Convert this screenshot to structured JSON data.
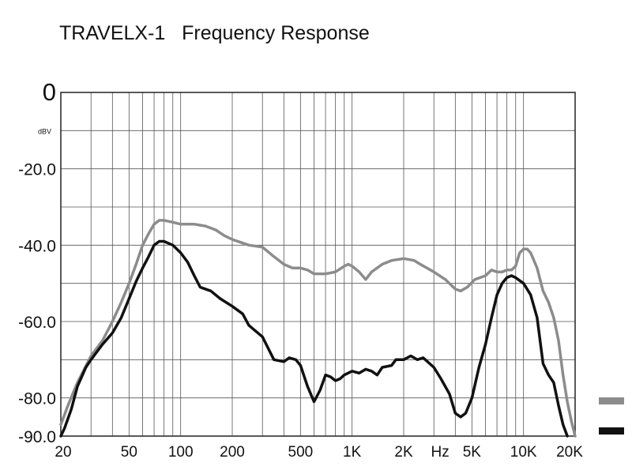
{
  "title": "TRAVELX-1   Frequency Response",
  "chart_data": {
    "type": "line",
    "title": "TRAVELX-1   Frequency Response",
    "xscale": "log",
    "xlim": [
      20,
      20000
    ],
    "ylim": [
      -90,
      0
    ],
    "grid": true,
    "y_unit_label": "dBV",
    "x_unit_label": "Hz",
    "y_ticks": [
      {
        "value": 0,
        "label": "0"
      },
      {
        "value": -20,
        "label": "-20.0"
      },
      {
        "value": -40,
        "label": "-40.0"
      },
      {
        "value": -60,
        "label": "-60.0"
      },
      {
        "value": -80,
        "label": "-80.0"
      },
      {
        "value": -90,
        "label": "-90.0"
      }
    ],
    "x_ticks": [
      {
        "value": 20,
        "label": "20"
      },
      {
        "value": 50,
        "label": "50"
      },
      {
        "value": 100,
        "label": "100"
      },
      {
        "value": 200,
        "label": "200"
      },
      {
        "value": 500,
        "label": "500"
      },
      {
        "value": 1000,
        "label": "1K"
      },
      {
        "value": 2000,
        "label": "2K"
      },
      {
        "value": 5000,
        "label": "5K"
      },
      {
        "value": 10000,
        "label": "10K"
      },
      {
        "value": 20000,
        "label": "20K"
      }
    ],
    "series": [
      {
        "color": "#8c8c8c",
        "points": [
          [
            20,
            -87
          ],
          [
            22,
            -82
          ],
          [
            25,
            -76
          ],
          [
            30,
            -69
          ],
          [
            35,
            -65
          ],
          [
            40,
            -60
          ],
          [
            45,
            -55
          ],
          [
            50,
            -50
          ],
          [
            55,
            -45
          ],
          [
            60,
            -40
          ],
          [
            65,
            -37
          ],
          [
            70,
            -34.5
          ],
          [
            75,
            -33.5
          ],
          [
            80,
            -33.5
          ],
          [
            90,
            -34
          ],
          [
            100,
            -34.5
          ],
          [
            120,
            -34.5
          ],
          [
            140,
            -35
          ],
          [
            160,
            -36
          ],
          [
            180,
            -37.5
          ],
          [
            200,
            -38.5
          ],
          [
            250,
            -40
          ],
          [
            300,
            -40.5
          ],
          [
            350,
            -43
          ],
          [
            400,
            -45
          ],
          [
            450,
            -46
          ],
          [
            500,
            -46
          ],
          [
            550,
            -46.5
          ],
          [
            600,
            -47.5
          ],
          [
            700,
            -47.5
          ],
          [
            800,
            -47
          ],
          [
            900,
            -45.5
          ],
          [
            950,
            -45
          ],
          [
            1000,
            -45.5
          ],
          [
            1100,
            -47
          ],
          [
            1200,
            -49
          ],
          [
            1300,
            -47
          ],
          [
            1500,
            -45
          ],
          [
            1700,
            -44
          ],
          [
            2000,
            -43.5
          ],
          [
            2300,
            -44
          ],
          [
            2500,
            -45
          ],
          [
            3000,
            -47
          ],
          [
            3500,
            -49
          ],
          [
            4000,
            -51.5
          ],
          [
            4300,
            -52
          ],
          [
            4700,
            -51
          ],
          [
            5200,
            -49
          ],
          [
            6000,
            -48
          ],
          [
            6500,
            -46.5
          ],
          [
            7000,
            -47
          ],
          [
            7500,
            -47
          ],
          [
            8000,
            -46.5
          ],
          [
            8500,
            -46.5
          ],
          [
            9000,
            -45.5
          ],
          [
            9500,
            -42
          ],
          [
            10000,
            -41
          ],
          [
            10500,
            -41
          ],
          [
            11000,
            -42
          ],
          [
            12000,
            -46
          ],
          [
            13000,
            -52
          ],
          [
            14000,
            -55
          ],
          [
            15000,
            -59
          ],
          [
            16000,
            -65
          ],
          [
            17000,
            -74
          ],
          [
            18000,
            -81
          ],
          [
            19000,
            -86
          ],
          [
            20000,
            -90
          ]
        ]
      },
      {
        "color": "#111111",
        "points": [
          [
            20,
            -90
          ],
          [
            21,
            -88
          ],
          [
            23,
            -83
          ],
          [
            25,
            -77
          ],
          [
            28,
            -72
          ],
          [
            30,
            -70
          ],
          [
            35,
            -66
          ],
          [
            40,
            -63
          ],
          [
            45,
            -59
          ],
          [
            50,
            -54
          ],
          [
            55,
            -49.5
          ],
          [
            60,
            -46
          ],
          [
            65,
            -43
          ],
          [
            70,
            -40
          ],
          [
            75,
            -39
          ],
          [
            80,
            -39
          ],
          [
            90,
            -40
          ],
          [
            100,
            -42
          ],
          [
            110,
            -44.5
          ],
          [
            120,
            -48
          ],
          [
            130,
            -51
          ],
          [
            150,
            -52
          ],
          [
            170,
            -54
          ],
          [
            200,
            -56
          ],
          [
            230,
            -58
          ],
          [
            250,
            -61
          ],
          [
            300,
            -64
          ],
          [
            350,
            -70
          ],
          [
            400,
            -70.5
          ],
          [
            430,
            -69.5
          ],
          [
            470,
            -70
          ],
          [
            500,
            -71.5
          ],
          [
            550,
            -77
          ],
          [
            600,
            -81
          ],
          [
            650,
            -78
          ],
          [
            700,
            -74
          ],
          [
            750,
            -74.5
          ],
          [
            800,
            -75.5
          ],
          [
            850,
            -75
          ],
          [
            900,
            -74
          ],
          [
            1000,
            -73
          ],
          [
            1100,
            -73.5
          ],
          [
            1200,
            -72.5
          ],
          [
            1300,
            -73
          ],
          [
            1400,
            -74
          ],
          [
            1500,
            -72
          ],
          [
            1700,
            -71.5
          ],
          [
            1800,
            -70
          ],
          [
            2000,
            -70
          ],
          [
            2200,
            -69
          ],
          [
            2400,
            -70
          ],
          [
            2600,
            -69.5
          ],
          [
            3000,
            -72
          ],
          [
            3300,
            -75
          ],
          [
            3700,
            -79
          ],
          [
            4000,
            -84
          ],
          [
            4300,
            -85
          ],
          [
            4600,
            -84
          ],
          [
            5000,
            -80
          ],
          [
            5500,
            -72
          ],
          [
            6000,
            -66
          ],
          [
            6500,
            -59
          ],
          [
            7000,
            -53
          ],
          [
            7500,
            -50
          ],
          [
            8000,
            -48.5
          ],
          [
            8500,
            -48
          ],
          [
            9000,
            -48.5
          ],
          [
            10000,
            -50
          ],
          [
            11000,
            -53
          ],
          [
            12000,
            -59
          ],
          [
            13000,
            -71
          ],
          [
            14000,
            -74
          ],
          [
            15000,
            -76
          ],
          [
            16000,
            -82
          ],
          [
            17000,
            -87
          ],
          [
            18000,
            -90
          ]
        ]
      }
    ]
  }
}
